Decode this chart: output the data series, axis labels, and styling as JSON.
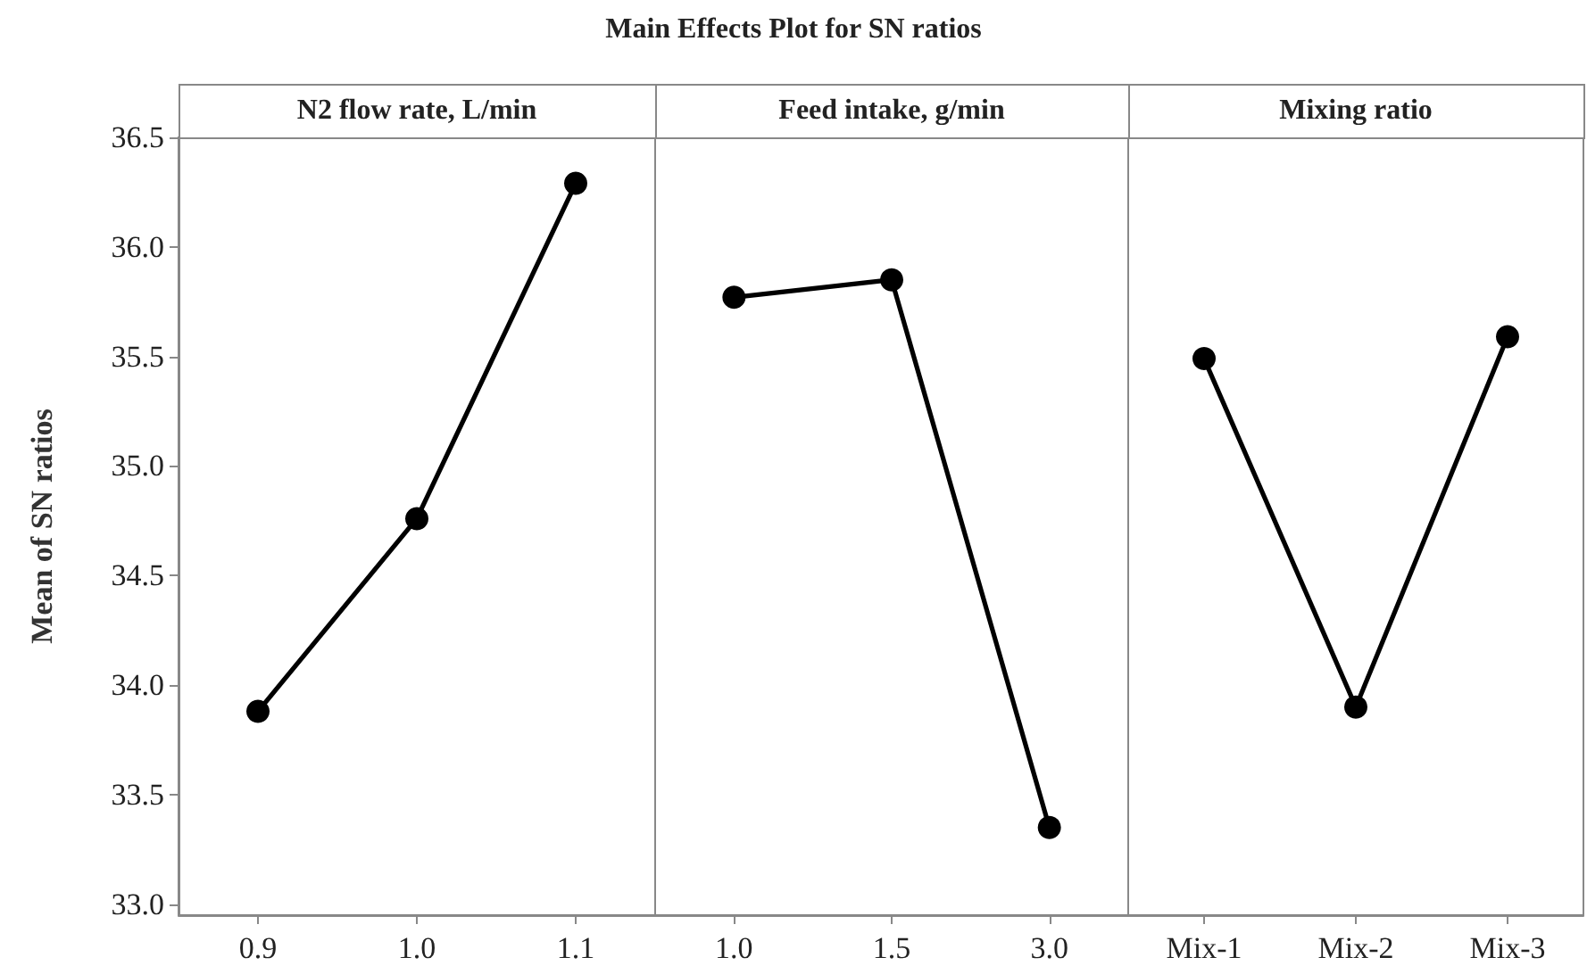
{
  "chart_data": [
    {
      "type": "line",
      "title": "N2 flow rate, L/min",
      "ylabel": "Mean of SN ratios",
      "annotations": [
        "Main Effects Plot for SN ratios"
      ],
      "categories": [
        "0.9",
        "1.0",
        "1.1"
      ],
      "values": [
        33.88,
        34.76,
        36.29
      ],
      "color": "#000000",
      "marker": "circle",
      "line_style": "solid",
      "ylim": [
        32.95,
        36.5
      ],
      "yticks": [
        {
          "value": 33,
          "label": "33.0"
        },
        33.5,
        {
          "value": 34,
          "label": "34.0"
        },
        34.5,
        {
          "value": 35,
          "label": "35.0"
        },
        35.5,
        {
          "value": 36,
          "label": "36.0"
        },
        36.5
      ]
    },
    {
      "type": "line",
      "title": "Feed intake, g/min",
      "categories": [
        "1.0",
        "1.5",
        "3.0"
      ],
      "values": [
        35.77,
        35.85,
        33.35
      ],
      "color": "#000000",
      "marker": "circle",
      "line_style": "solid",
      "ylim": [
        32.95,
        36.5
      ],
      "yticks": [
        33.0,
        33.5,
        34.0,
        34.5,
        35.0,
        35.5,
        36.0,
        36.5
      ],
      "tick_labels": "x"
    },
    {
      "type": "line",
      "title": "Mixing ratio",
      "categories": [
        "Mix-1",
        "Mix-2",
        "Mix-3"
      ],
      "values": [
        35.49,
        33.9,
        35.59
      ],
      "color": "#000000",
      "marker": "circle",
      "line_style": "solid",
      "ylim": [
        32.95,
        36.5
      ],
      "yticks": [
        33.0,
        33.5,
        34.0,
        34.5,
        35.0,
        35.5,
        36.0,
        36.5
      ],
      "tick_labels": "x"
    }
  ]
}
